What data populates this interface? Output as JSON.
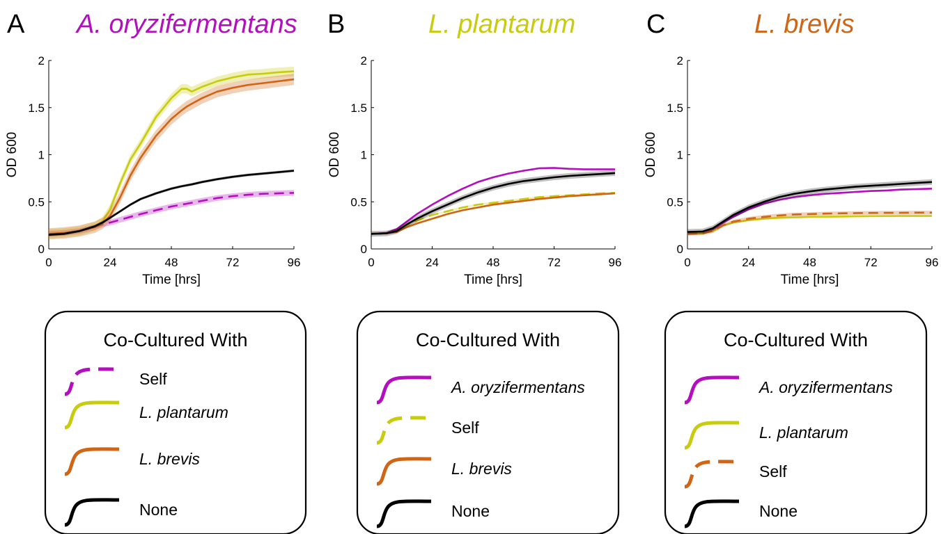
{
  "colors": {
    "A. oryzifermentans": "#b40fbe",
    "L. plantarum": "#c8cc0e",
    "L. brevis": "#cf6515",
    "None": "#000000"
  },
  "chart_data": [
    {
      "type": "line",
      "panel": "A",
      "title": "A. oryzifermentans",
      "title_color": "#b40fbe",
      "xlabel": "Time [hrs]",
      "ylabel": "OD 600",
      "xlim": [
        0,
        96
      ],
      "ylim": [
        0,
        2
      ],
      "xticks": [
        "0",
        "24",
        "48",
        "72",
        "96"
      ],
      "yticks": [
        "0",
        "0.5",
        "1",
        "1.5",
        "2"
      ],
      "x": [
        0,
        6,
        12,
        18,
        21,
        24,
        28,
        32,
        36,
        42,
        48,
        52,
        54,
        56,
        60,
        66,
        72,
        78,
        84,
        90,
        96
      ],
      "series": [
        {
          "name": "Self",
          "color": "#b40fbe",
          "dash": true,
          "band": 0.03,
          "values": [
            0.16,
            0.17,
            0.19,
            0.23,
            0.26,
            0.28,
            0.31,
            0.34,
            0.37,
            0.41,
            0.45,
            0.47,
            0.48,
            0.49,
            0.51,
            0.54,
            0.56,
            0.575,
            0.585,
            0.59,
            0.595
          ]
        },
        {
          "name": "L. plantarum",
          "color": "#c8cc0e",
          "dash": false,
          "band": 0.05,
          "values": [
            0.16,
            0.17,
            0.19,
            0.24,
            0.29,
            0.42,
            0.7,
            0.95,
            1.12,
            1.4,
            1.6,
            1.7,
            1.7,
            1.67,
            1.72,
            1.78,
            1.82,
            1.85,
            1.86,
            1.875,
            1.885
          ]
        },
        {
          "name": "L. brevis",
          "color": "#cf6515",
          "dash": false,
          "band": 0.06,
          "values": [
            0.16,
            0.17,
            0.19,
            0.23,
            0.27,
            0.35,
            0.55,
            0.78,
            0.97,
            1.2,
            1.38,
            1.47,
            1.51,
            1.54,
            1.6,
            1.67,
            1.71,
            1.74,
            1.76,
            1.78,
            1.8
          ]
        },
        {
          "name": "None",
          "color": "#000000",
          "dash": false,
          "band": 0.015,
          "values": [
            0.15,
            0.16,
            0.19,
            0.24,
            0.28,
            0.33,
            0.4,
            0.47,
            0.53,
            0.59,
            0.64,
            0.665,
            0.675,
            0.685,
            0.71,
            0.74,
            0.765,
            0.785,
            0.8,
            0.815,
            0.83
          ]
        }
      ],
      "legend": {
        "title": "Co-Cultured With",
        "entries": [
          {
            "label": "Self",
            "color": "#b40fbe",
            "dash": true,
            "italic": false
          },
          {
            "label": "L. plantarum",
            "color": "#c8cc0e",
            "dash": false,
            "italic": true
          },
          {
            "label": "L. brevis",
            "color": "#cf6515",
            "dash": false,
            "italic": true
          },
          {
            "label": "None",
            "color": "#000000",
            "dash": false,
            "italic": false
          }
        ]
      }
    },
    {
      "type": "line",
      "panel": "B",
      "title": "L. plantarum",
      "title_color": "#c8cc0e",
      "xlabel": "Time [hrs]",
      "ylabel": "OD 600",
      "xlim": [
        0,
        96
      ],
      "ylim": [
        0,
        2
      ],
      "xticks": [
        "0",
        "24",
        "48",
        "72",
        "96"
      ],
      "yticks": [
        "0",
        "0.5",
        "1",
        "1.5",
        "2"
      ],
      "x": [
        0,
        6,
        10,
        14,
        18,
        24,
        30,
        36,
        42,
        48,
        54,
        60,
        66,
        72,
        78,
        84,
        90,
        96
      ],
      "series": [
        {
          "name": "A. oryzifermentans",
          "color": "#b40fbe",
          "dash": false,
          "band": 0.01,
          "values": [
            0.16,
            0.17,
            0.21,
            0.29,
            0.37,
            0.47,
            0.56,
            0.64,
            0.71,
            0.76,
            0.8,
            0.83,
            0.855,
            0.86,
            0.85,
            0.845,
            0.845,
            0.845
          ]
        },
        {
          "name": "Self",
          "color": "#c8cc0e",
          "dash": true,
          "band": 0.01,
          "values": [
            0.16,
            0.165,
            0.19,
            0.25,
            0.3,
            0.36,
            0.4,
            0.44,
            0.47,
            0.49,
            0.51,
            0.53,
            0.55,
            0.56,
            0.57,
            0.58,
            0.59,
            0.595
          ]
        },
        {
          "name": "L. brevis",
          "color": "#cf6515",
          "dash": false,
          "band": 0.01,
          "values": [
            0.16,
            0.165,
            0.18,
            0.23,
            0.27,
            0.32,
            0.37,
            0.41,
            0.44,
            0.47,
            0.49,
            0.51,
            0.53,
            0.545,
            0.56,
            0.57,
            0.58,
            0.59
          ]
        },
        {
          "name": "None",
          "color": "#000000",
          "dash": false,
          "band": 0.03,
          "values": [
            0.16,
            0.165,
            0.19,
            0.26,
            0.32,
            0.4,
            0.47,
            0.54,
            0.6,
            0.65,
            0.69,
            0.72,
            0.74,
            0.76,
            0.775,
            0.785,
            0.795,
            0.805
          ]
        }
      ],
      "legend": {
        "title": "Co-Cultured With",
        "entries": [
          {
            "label": "A. oryzifermentans",
            "color": "#b40fbe",
            "dash": false,
            "italic": true
          },
          {
            "label": "Self",
            "color": "#c8cc0e",
            "dash": true,
            "italic": false
          },
          {
            "label": "L. brevis",
            "color": "#cf6515",
            "dash": false,
            "italic": true
          },
          {
            "label": "None",
            "color": "#000000",
            "dash": false,
            "italic": false
          }
        ]
      }
    },
    {
      "type": "line",
      "panel": "C",
      "title": "L. brevis",
      "title_color": "#cf6515",
      "xlabel": "Time [hrs]",
      "ylabel": "OD 600",
      "xlim": [
        0,
        96
      ],
      "ylim": [
        0,
        2
      ],
      "xticks": [
        "0",
        "24",
        "48",
        "72",
        "96"
      ],
      "yticks": [
        "0",
        "0.5",
        "1",
        "1.5",
        "2"
      ],
      "x": [
        0,
        6,
        10,
        14,
        18,
        24,
        30,
        36,
        42,
        48,
        54,
        60,
        66,
        72,
        78,
        84,
        90,
        96
      ],
      "series": [
        {
          "name": "A. oryzifermentans",
          "color": "#b40fbe",
          "dash": false,
          "band": 0.01,
          "values": [
            0.17,
            0.175,
            0.21,
            0.28,
            0.34,
            0.42,
            0.48,
            0.52,
            0.55,
            0.57,
            0.585,
            0.595,
            0.605,
            0.615,
            0.62,
            0.63,
            0.635,
            0.64
          ]
        },
        {
          "name": "L. plantarum",
          "color": "#c8cc0e",
          "dash": false,
          "band": 0.01,
          "values": [
            0.16,
            0.165,
            0.19,
            0.25,
            0.28,
            0.305,
            0.32,
            0.33,
            0.335,
            0.34,
            0.342,
            0.344,
            0.346,
            0.348,
            0.349,
            0.35,
            0.35,
            0.35
          ]
        },
        {
          "name": "Self",
          "color": "#cf6515",
          "dash": true,
          "band": 0.02,
          "values": [
            0.16,
            0.165,
            0.19,
            0.25,
            0.29,
            0.32,
            0.34,
            0.355,
            0.365,
            0.37,
            0.375,
            0.378,
            0.38,
            0.382,
            0.383,
            0.384,
            0.385,
            0.385
          ]
        },
        {
          "name": "None",
          "color": "#000000",
          "dash": false,
          "band": 0.03,
          "values": [
            0.18,
            0.185,
            0.22,
            0.29,
            0.36,
            0.44,
            0.5,
            0.55,
            0.585,
            0.61,
            0.63,
            0.645,
            0.66,
            0.67,
            0.68,
            0.69,
            0.7,
            0.71
          ]
        }
      ],
      "legend": {
        "title": "Co-Cultured With",
        "entries": [
          {
            "label": "A. oryzifermentans",
            "color": "#b40fbe",
            "dash": false,
            "italic": true
          },
          {
            "label": "L. plantarum",
            "color": "#c8cc0e",
            "dash": false,
            "italic": true
          },
          {
            "label": "Self",
            "color": "#cf6515",
            "dash": true,
            "italic": false
          },
          {
            "label": "None",
            "color": "#000000",
            "dash": false,
            "italic": false
          }
        ]
      }
    }
  ]
}
